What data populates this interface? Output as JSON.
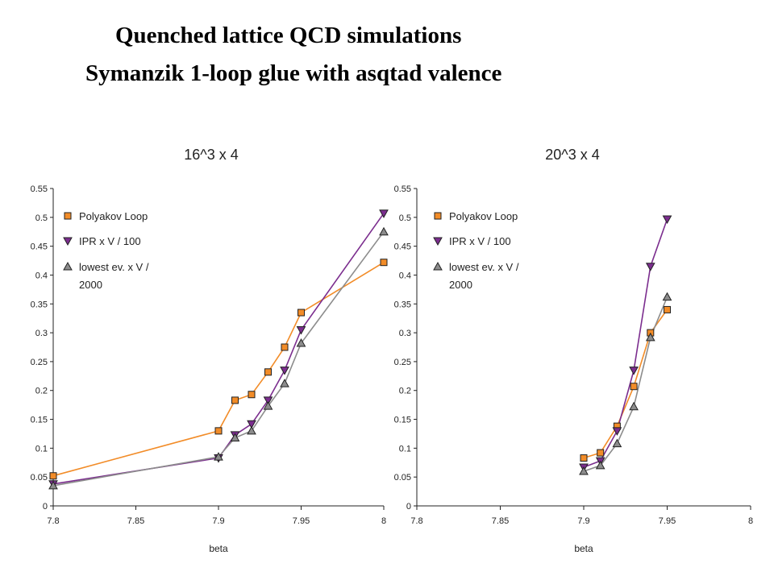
{
  "slide": {
    "title_line_1": "Quenched lattice QCD simulations",
    "title_line_2": "Symanzik 1-loop glue with asqtad valence"
  },
  "chart_data": [
    {
      "type": "line",
      "title": "16^3 x 4",
      "xlabel": "beta",
      "ylabel": "",
      "xlim": [
        7.8,
        8.0
      ],
      "ylim": [
        0,
        0.55
      ],
      "x_ticks": [
        "7.8",
        "7.85",
        "7.9",
        "7.95",
        "8"
      ],
      "y_ticks": [
        "0",
        "0.05",
        "0.1",
        "0.15",
        "0.2",
        "0.25",
        "0.3",
        "0.35",
        "0.4",
        "0.45",
        "0.5",
        "0.55"
      ],
      "legend_position": "top-left",
      "series": [
        {
          "name": "Polyakov Loop",
          "color": "#f28c28",
          "marker": "square",
          "x": [
            7.8,
            7.9,
            7.91,
            7.92,
            7.93,
            7.94,
            7.95,
            8.0
          ],
          "y": [
            0.052,
            0.13,
            0.183,
            0.193,
            0.232,
            0.275,
            0.335,
            0.422
          ]
        },
        {
          "name": "IPR x V / 100",
          "color": "#7b2d8e",
          "marker": "triangle-down",
          "x": [
            7.8,
            7.9,
            7.91,
            7.92,
            7.93,
            7.94,
            7.95,
            8.0
          ],
          "y": [
            0.038,
            0.083,
            0.123,
            0.142,
            0.183,
            0.235,
            0.305,
            0.507
          ]
        },
        {
          "name": "lowest ev. x V / 2000",
          "color": "#8c8c8c",
          "marker": "triangle-up",
          "x": [
            7.8,
            7.9,
            7.91,
            7.92,
            7.93,
            7.94,
            7.95,
            8.0
          ],
          "y": [
            0.035,
            0.085,
            0.118,
            0.13,
            0.173,
            0.212,
            0.282,
            0.475
          ]
        }
      ]
    },
    {
      "type": "line",
      "title": "20^3 x 4",
      "xlabel": "beta",
      "ylabel": "",
      "xlim": [
        7.8,
        8.0
      ],
      "ylim": [
        0,
        0.55
      ],
      "x_ticks": [
        "7.8",
        "7.85",
        "7.9",
        "7.95",
        "8"
      ],
      "y_ticks": [
        "0",
        "0.05",
        "0.1",
        "0.15",
        "0.2",
        "0.25",
        "0.3",
        "0.35",
        "0.4",
        "0.45",
        "0.5",
        "0.55"
      ],
      "legend_position": "top-left",
      "series": [
        {
          "name": "Polyakov Loop",
          "color": "#f28c28",
          "marker": "square",
          "x": [
            7.9,
            7.91,
            7.92,
            7.93,
            7.94,
            7.95
          ],
          "y": [
            0.083,
            0.092,
            0.138,
            0.207,
            0.3,
            0.34
          ]
        },
        {
          "name": "IPR x V / 100",
          "color": "#7b2d8e",
          "marker": "triangle-down",
          "x": [
            7.9,
            7.91,
            7.92,
            7.93,
            7.94,
            7.95
          ],
          "y": [
            0.067,
            0.078,
            0.13,
            0.235,
            0.415,
            0.497
          ]
        },
        {
          "name": "lowest ev. x V / 2000",
          "color": "#8c8c8c",
          "marker": "triangle-up",
          "x": [
            7.9,
            7.91,
            7.92,
            7.93,
            7.94,
            7.95
          ],
          "y": [
            0.06,
            0.07,
            0.108,
            0.172,
            0.292,
            0.362
          ]
        }
      ]
    }
  ]
}
